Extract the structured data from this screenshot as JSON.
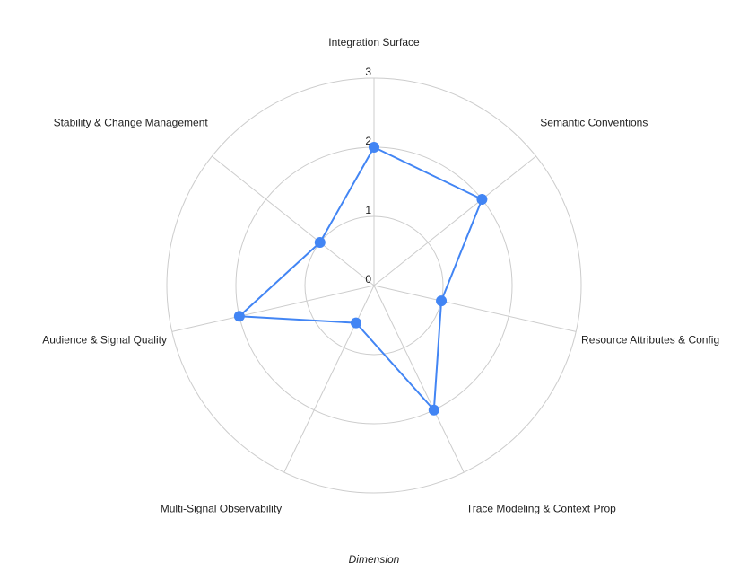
{
  "chart_data": {
    "type": "radar",
    "categories": [
      "Integration Surface",
      "Semantic Conventions",
      "Resource Attributes & Config",
      "Trace Modeling & Context Prop",
      "Multi-Signal Observability",
      "Audience & Signal Quality",
      "Stability & Change Management"
    ],
    "series": [
      {
        "values": [
          2,
          2,
          1,
          2,
          0.6,
          2,
          1
        ]
      }
    ],
    "rlim": [
      0,
      3
    ],
    "ticks": [
      "0",
      "1",
      "2",
      "3"
    ],
    "xlabel": "Dimension",
    "grid": true,
    "colors": {
      "series": "#4285f4",
      "grid": "#cccccc",
      "text": "#222222"
    }
  }
}
